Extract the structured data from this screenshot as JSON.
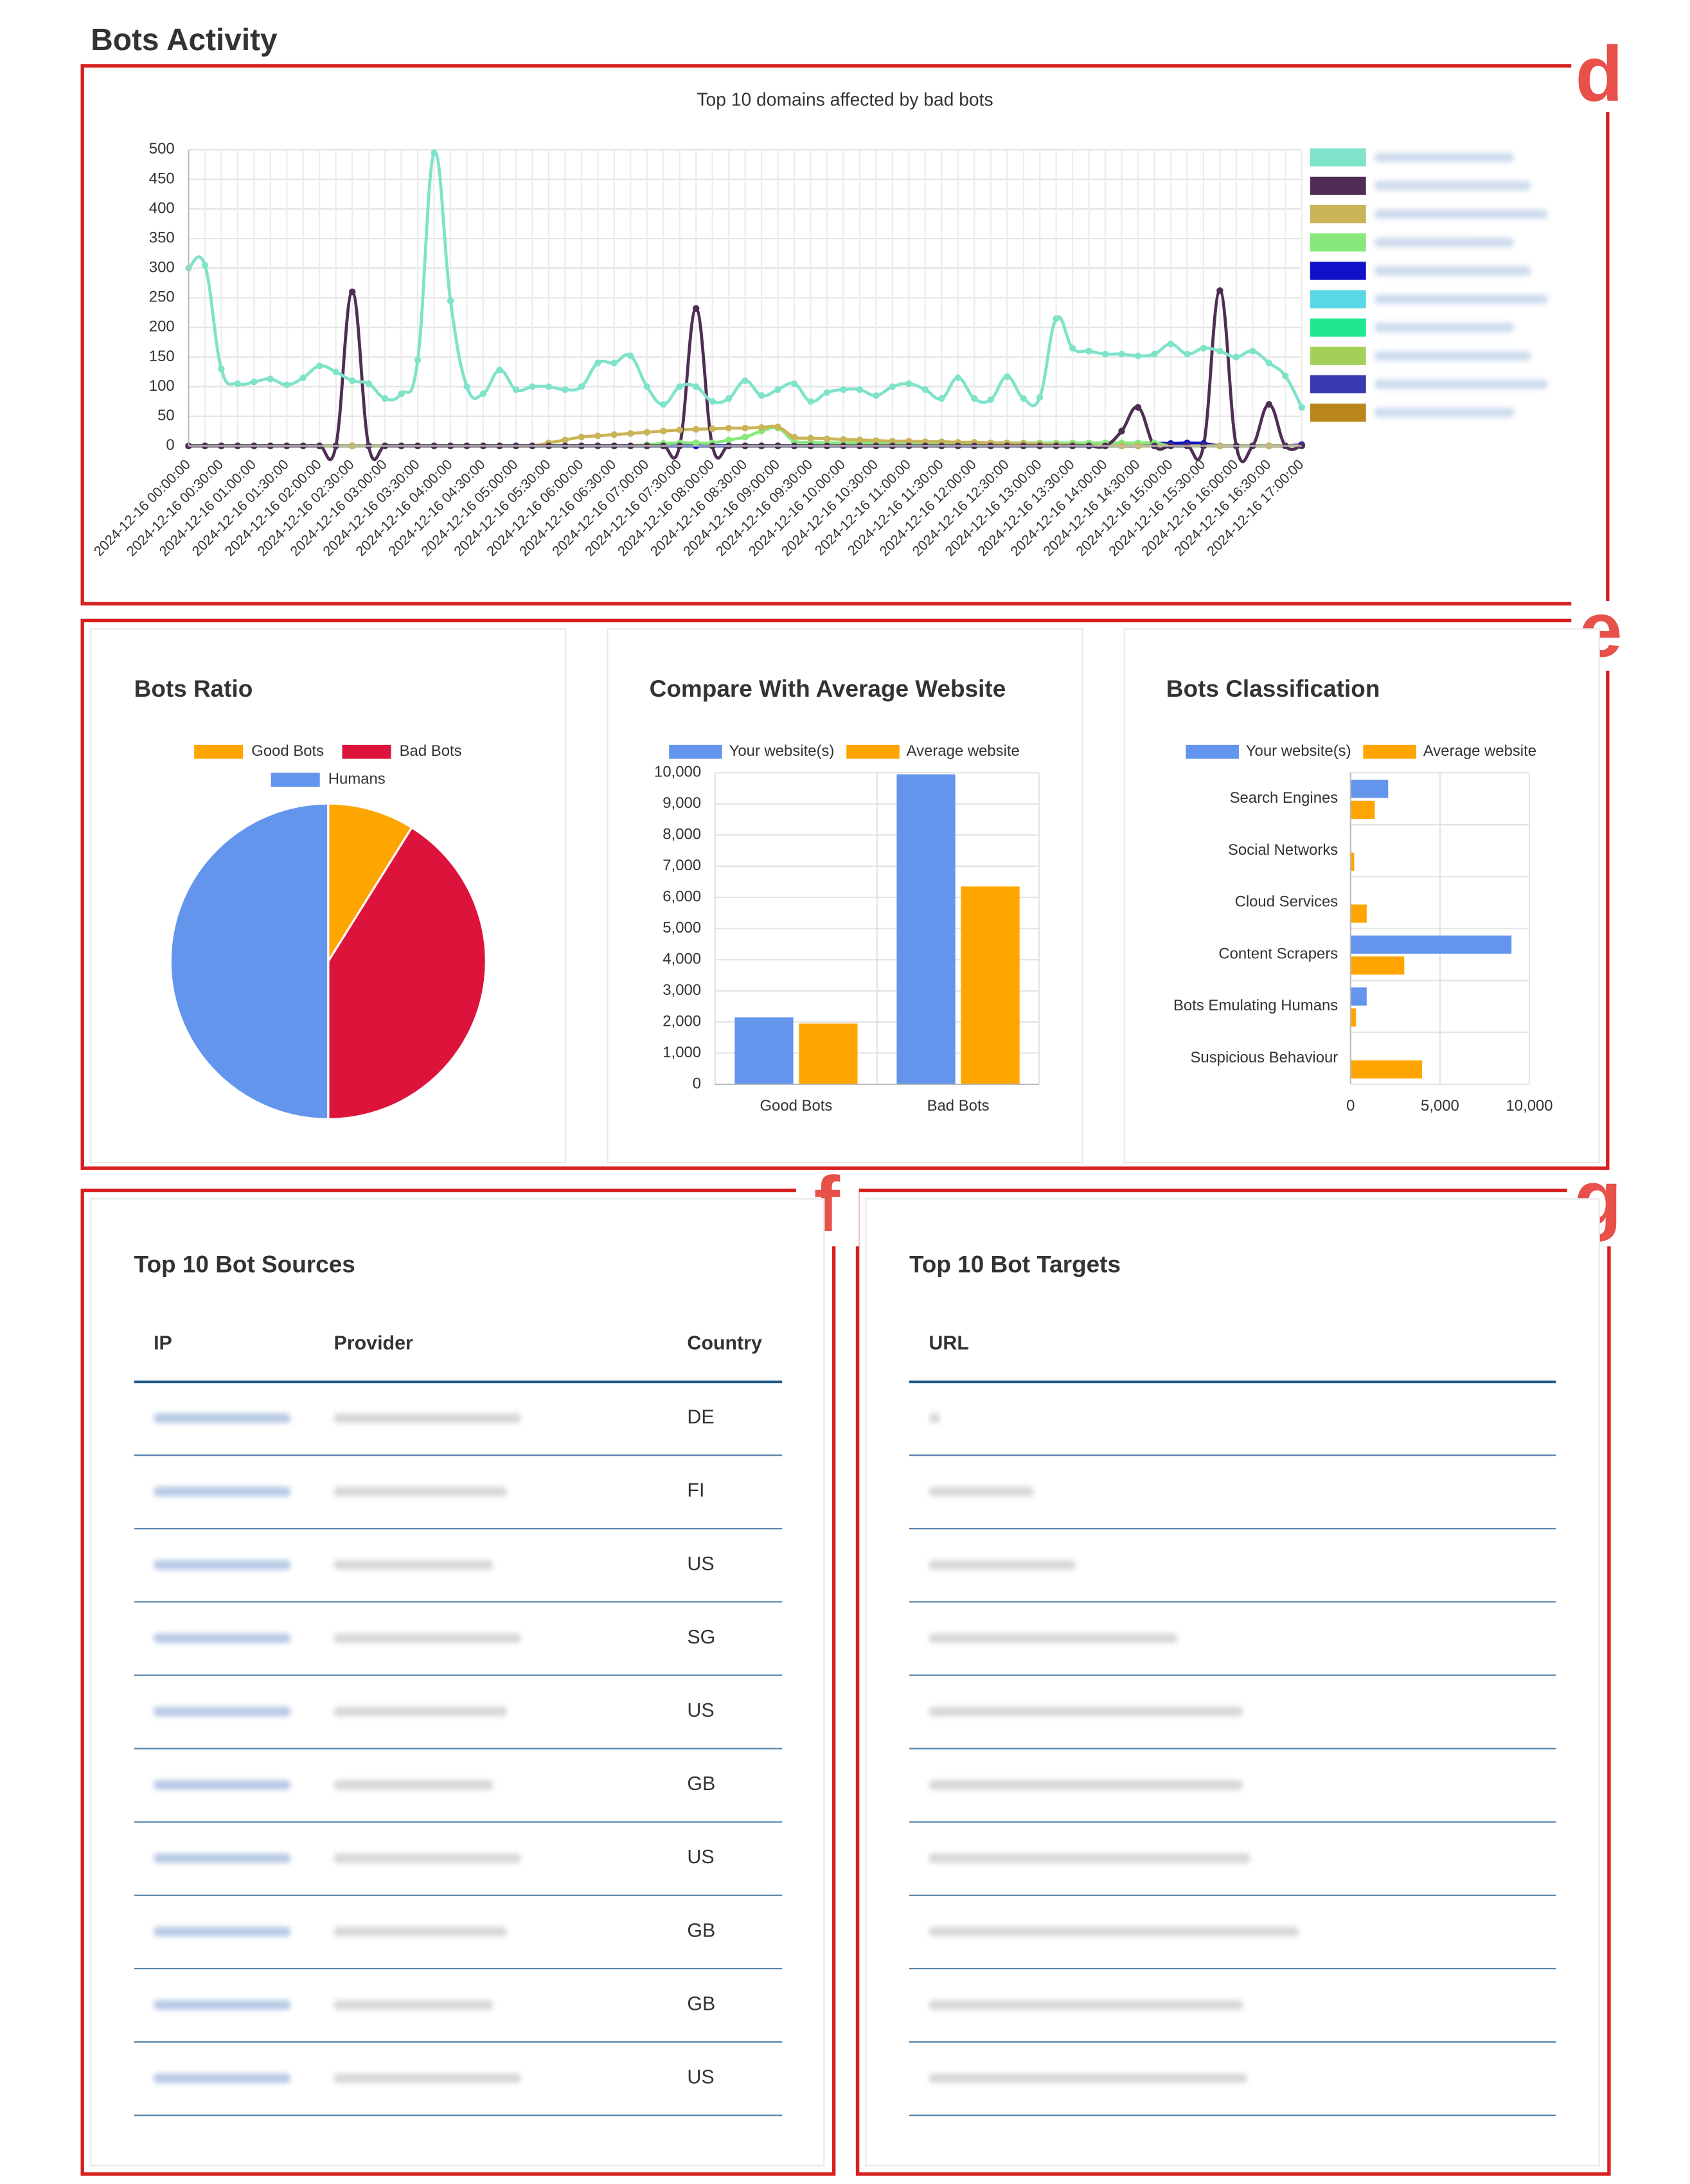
{
  "page_title": "Bots Activity",
  "annotations": [
    "d",
    "e",
    "f",
    "g"
  ],
  "chart_data": [
    {
      "type": "line",
      "title": "Top 10 domains affected by bad bots",
      "categories": [
        "2024-12-16 00:00:00",
        null,
        "2024-12-16 00:30:00",
        null,
        "2024-12-16 01:00:00",
        null,
        "2024-12-16 01:30:00",
        null,
        "2024-12-16 02:00:00",
        null,
        "2024-12-16 02:30:00",
        null,
        "2024-12-16 03:00:00",
        null,
        "2024-12-16 03:30:00",
        null,
        "2024-12-16 04:00:00",
        null,
        "2024-12-16 04:30:00",
        null,
        "2024-12-16 05:00:00",
        null,
        "2024-12-16 05:30:00",
        null,
        "2024-12-16 06:00:00",
        null,
        "2024-12-16 06:30:00",
        null,
        "2024-12-16 07:00:00",
        null,
        "2024-12-16 07:30:00",
        null,
        "2024-12-16 08:00:00",
        null,
        "2024-12-16 08:30:00",
        null,
        "2024-12-16 09:00:00",
        null,
        "2024-12-16 09:30:00",
        null,
        "2024-12-16 10:00:00",
        null,
        "2024-12-16 10:30:00",
        null,
        "2024-12-16 11:00:00",
        null,
        "2024-12-16 11:30:00",
        null,
        "2024-12-16 12:00:00",
        null,
        "2024-12-16 12:30:00",
        null,
        "2024-12-16 13:00:00",
        null,
        "2024-12-16 13:30:00",
        null,
        "2024-12-16 14:00:00",
        null,
        "2024-12-16 14:30:00",
        null,
        "2024-12-16 15:00:00",
        null,
        "2024-12-16 15:30:00",
        null,
        "2024-12-16 16:00:00",
        null,
        "2024-12-16 16:30:00",
        null,
        "2024-12-16 17:00:00"
      ],
      "series": [
        {
          "color": "#7fe3c9",
          "values": [
            300,
            305,
            130,
            105,
            108,
            113,
            103,
            115,
            135,
            125,
            110,
            105,
            80,
            88,
            145,
            495,
            245,
            100,
            88,
            128,
            95,
            100,
            100,
            95,
            100,
            140,
            140,
            152,
            100,
            70,
            100,
            100,
            75,
            80,
            110,
            85,
            95,
            105,
            75,
            90,
            95,
            95,
            85,
            100,
            105,
            95,
            80,
            115,
            80,
            78,
            117,
            80,
            82,
            215,
            165,
            160,
            155,
            155,
            152,
            155,
            172,
            155,
            165,
            160,
            150,
            160,
            140,
            118,
            65
          ]
        },
        {
          "color": "#4f2d55",
          "values": [
            0,
            0,
            0,
            0,
            0,
            0,
            0,
            0,
            0,
            0,
            260,
            0,
            0,
            0,
            0,
            0,
            0,
            0,
            0,
            0,
            0,
            0,
            0,
            0,
            0,
            0,
            0,
            0,
            0,
            0,
            0,
            232,
            0,
            0,
            0,
            0,
            0,
            0,
            0,
            0,
            0,
            0,
            0,
            0,
            0,
            0,
            0,
            0,
            0,
            0,
            0,
            0,
            0,
            0,
            0,
            0,
            0,
            25,
            65,
            0,
            0,
            0,
            0,
            262,
            0,
            0,
            70,
            0,
            0
          ]
        },
        {
          "color": "#c9b458",
          "values": [
            0,
            0,
            0,
            0,
            0,
            0,
            0,
            0,
            0,
            0,
            0,
            0,
            0,
            0,
            0,
            0,
            0,
            0,
            0,
            0,
            0,
            0,
            5,
            10,
            15,
            17,
            19,
            21,
            23,
            25,
            27,
            28,
            29,
            30,
            30,
            31,
            32,
            15,
            13,
            12,
            11,
            10,
            9,
            8,
            8,
            7,
            7,
            6,
            6,
            5,
            5,
            4,
            3,
            2,
            1,
            0,
            0,
            0,
            0,
            0,
            0,
            0,
            0,
            0,
            0,
            0,
            0,
            0,
            0
          ]
        },
        {
          "color": "#86e87a",
          "values": [
            0,
            0,
            0,
            0,
            0,
            0,
            0,
            0,
            0,
            0,
            0,
            0,
            0,
            0,
            0,
            0,
            0,
            0,
            0,
            0,
            0,
            0,
            0,
            0,
            0,
            0,
            0,
            0,
            2,
            4,
            5,
            5,
            5,
            10,
            15,
            25,
            30,
            8,
            6,
            5,
            5,
            5,
            5,
            5,
            5,
            5,
            5,
            5,
            5,
            5,
            5,
            5,
            5,
            5,
            5,
            5,
            5,
            5,
            5,
            5,
            0,
            0,
            0,
            0,
            0,
            0,
            0,
            0,
            0
          ]
        },
        {
          "color": "#1010c8",
          "values": [
            0,
            0,
            0,
            0,
            0,
            0,
            0,
            0,
            0,
            0,
            0,
            0,
            0,
            0,
            0,
            0,
            0,
            0,
            0,
            0,
            0,
            0,
            0,
            0,
            0,
            0,
            0,
            0,
            0,
            0,
            0,
            0,
            0,
            0,
            0,
            0,
            0,
            0,
            0,
            0,
            0,
            0,
            0,
            0,
            0,
            0,
            0,
            0,
            0,
            0,
            0,
            0,
            0,
            0,
            0,
            0,
            0,
            0,
            0,
            4,
            4,
            5,
            4,
            0,
            0,
            0,
            0,
            0,
            2
          ]
        },
        {
          "color": "#5ad8e6",
          "values": [
            0,
            0,
            0,
            0,
            0,
            0,
            0,
            0,
            0,
            0,
            0,
            0,
            0,
            0,
            0,
            0,
            0,
            0,
            0,
            0,
            0,
            0,
            0,
            0,
            0,
            0,
            0,
            0,
            0,
            0,
            0,
            0,
            0,
            0,
            0,
            0,
            0,
            0,
            0,
            0,
            0,
            0,
            0,
            0,
            0,
            0,
            0,
            0,
            0,
            0,
            0,
            0,
            0,
            0,
            0,
            0,
            0,
            0,
            0,
            0,
            0,
            0,
            0,
            0,
            0,
            0,
            0,
            0,
            0
          ]
        },
        {
          "color": "#20e890",
          "values": [
            0,
            0,
            0,
            0,
            0,
            0,
            0,
            0,
            0,
            0,
            0,
            0,
            0,
            0,
            0,
            0,
            0,
            0,
            0,
            0,
            0,
            0,
            0,
            0,
            0,
            0,
            0,
            0,
            0,
            0,
            0,
            0,
            0,
            0,
            0,
            0,
            0,
            0,
            0,
            0,
            0,
            0,
            0,
            0,
            0,
            0,
            0,
            0,
            0,
            0,
            0,
            0,
            0,
            0,
            0,
            0,
            0,
            0,
            0,
            0,
            0,
            0,
            0,
            0,
            0,
            0,
            0,
            0,
            0
          ]
        },
        {
          "color": "#a4d05a",
          "values": [
            0,
            0,
            0,
            0,
            0,
            0,
            0,
            0,
            0,
            0,
            0,
            0,
            0,
            0,
            0,
            0,
            0,
            0,
            0,
            0,
            0,
            0,
            0,
            0,
            0,
            0,
            0,
            0,
            0,
            0,
            0,
            0,
            0,
            0,
            0,
            0,
            0,
            0,
            0,
            0,
            0,
            0,
            0,
            0,
            0,
            0,
            0,
            0,
            0,
            0,
            0,
            0,
            0,
            0,
            0,
            0,
            0,
            0,
            0,
            0,
            0,
            0,
            0,
            0,
            0,
            0,
            0,
            0,
            0
          ]
        },
        {
          "color": "#3a3ab0",
          "values": [
            0,
            0,
            0,
            0,
            0,
            0,
            0,
            0,
            0,
            0,
            0,
            0,
            0,
            0,
            0,
            0,
            0,
            0,
            0,
            0,
            0,
            0,
            0,
            0,
            0,
            0,
            0,
            0,
            0,
            0,
            0,
            0,
            0,
            0,
            0,
            0,
            0,
            0,
            0,
            0,
            0,
            0,
            0,
            0,
            0,
            0,
            0,
            0,
            0,
            0,
            0,
            0,
            0,
            0,
            0,
            0,
            0,
            0,
            0,
            0,
            0,
            0,
            0,
            0,
            0,
            0,
            0,
            0,
            0
          ]
        },
        {
          "color": "#b8861b",
          "values": [
            0,
            0,
            0,
            0,
            0,
            0,
            0,
            0,
            0,
            0,
            0,
            0,
            0,
            0,
            0,
            0,
            0,
            0,
            0,
            0,
            0,
            0,
            0,
            0,
            0,
            0,
            0,
            0,
            0,
            0,
            0,
            0,
            0,
            0,
            0,
            0,
            0,
            0,
            0,
            0,
            0,
            0,
            0,
            0,
            0,
            0,
            0,
            0,
            0,
            0,
            0,
            0,
            0,
            0,
            0,
            0,
            0,
            0,
            0,
            0,
            0,
            0,
            0,
            0,
            0,
            0,
            0,
            0,
            0
          ]
        }
      ],
      "ylim": [
        0,
        500
      ],
      "yticks": [
        0,
        50,
        100,
        150,
        200,
        250,
        300,
        350,
        400,
        450,
        500
      ],
      "grid": true
    },
    {
      "type": "pie",
      "title": "Bots Ratio",
      "categories": [
        "Good Bots",
        "Bad Bots",
        "Humans"
      ],
      "values": [
        2150,
        9950,
        12100
      ],
      "colors": [
        "#ffa500",
        "#dc143c",
        "#6495ed"
      ],
      "legend": "top"
    },
    {
      "type": "bar",
      "title": "Compare With Average Website",
      "categories": [
        "Good Bots",
        "Bad Bots"
      ],
      "series": [
        {
          "name": "Your website(s)",
          "color": "#6495ed",
          "values": [
            2150,
            9950
          ]
        },
        {
          "name": "Average website",
          "color": "#ffa500",
          "values": [
            1950,
            6350
          ]
        }
      ],
      "ylim": [
        0,
        10000
      ],
      "yticks": [
        0,
        {
          "value": 1000,
          "label": "1,000"
        },
        {
          "value": 2000,
          "label": "2,000"
        },
        {
          "value": 3000,
          "label": "3,000"
        },
        {
          "value": 4000,
          "label": "4,000"
        },
        {
          "value": 5000,
          "label": "5,000"
        },
        {
          "value": 6000,
          "label": "6,000"
        },
        {
          "value": 7000,
          "label": "7,000"
        },
        {
          "value": 8000,
          "label": "8,000"
        },
        {
          "value": 9000,
          "label": "9,000"
        },
        {
          "value": 10000,
          "label": "10,000"
        }
      ],
      "grid": true,
      "legend": "top"
    },
    {
      "type": "hbar",
      "title": "Bots Classification",
      "categories": [
        "Search Engines",
        "Social Networks",
        "Cloud Services",
        "Content Scrapers",
        "Bots Emulating Humans",
        "Suspicious Behaviour"
      ],
      "series": [
        {
          "name": "Your website(s)",
          "color": "#6495ed",
          "values": [
            2100,
            0,
            0,
            9000,
            900,
            0
          ]
        },
        {
          "name": "Average website",
          "color": "#ffa500",
          "values": [
            1350,
            200,
            900,
            3000,
            300,
            4000
          ]
        }
      ],
      "xlim": [
        0,
        10000
      ],
      "xticks": [
        0,
        {
          "value": 5000,
          "label": "5,000"
        },
        {
          "value": 10000,
          "label": "10,000"
        }
      ],
      "grid": true,
      "legend": "top"
    }
  ],
  "sources_table": {
    "title": "Top 10 Bot Sources",
    "columns": [
      "IP",
      "Provider",
      "Country"
    ],
    "countries": [
      "DE",
      "FI",
      "US",
      "SG",
      "US",
      "GB",
      "US",
      "GB",
      "GB",
      "US"
    ]
  },
  "targets_table": {
    "title": "Top 10 Bot Targets",
    "columns": [
      "URL"
    ]
  }
}
